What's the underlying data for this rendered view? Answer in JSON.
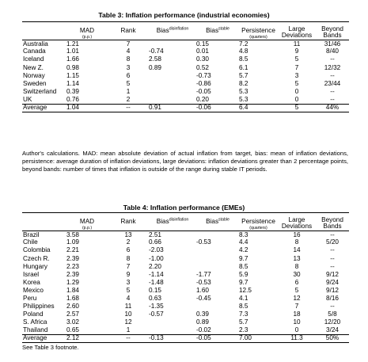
{
  "table3": {
    "title": "Table 3: Inflation performance (industrial economies)",
    "headers": {
      "mad": "MAD",
      "mad_unit": "(p.p.)",
      "rank": "Rank",
      "bias_dis": "Bias",
      "bias_dis_sup": "disinflation",
      "bias_sta": "Bias",
      "bias_sta_sup": "stable",
      "persistence": "Persistence",
      "persistence_unit": "(quarters)",
      "large": "Large",
      "large2": "Deviations",
      "beyond": "Beyond",
      "beyond2": "Bands"
    },
    "rows": [
      [
        "Australia",
        "1.21",
        "7",
        "",
        "0.15",
        "7.2",
        "11",
        "31/46"
      ],
      [
        "Canada",
        "1.01",
        "4",
        "-0.74",
        "0.01",
        "4.8",
        "9",
        "8/40"
      ],
      [
        "Iceland",
        "1.66",
        "8",
        "2.58",
        "0.30",
        "8.5",
        "5",
        "--"
      ],
      [
        "New Z.",
        "0.98",
        "3",
        "0.89",
        "0.52",
        "6.1",
        "7",
        "12/32"
      ],
      [
        "Norway",
        "1.15",
        "6",
        "",
        "-0.73",
        "5.7",
        "3",
        "--"
      ],
      [
        "Sweden",
        "1.14",
        "5",
        "",
        "-0.86",
        "8.2",
        "5",
        "23/44"
      ],
      [
        "Switzerland",
        "0.39",
        "1",
        "",
        "-0.05",
        "5.3",
        "0",
        "--"
      ],
      [
        "UK",
        "0.76",
        "2",
        "",
        "0.20",
        "5.3",
        "0",
        "--"
      ]
    ],
    "average": [
      "Average",
      "1.04",
      "--",
      "0.91",
      "-0.06",
      "6.4",
      "5",
      "44%"
    ]
  },
  "note3": "Author's calculations. MAD: mean absolute deviation of actual inflation from target, bias: mean of inflation deviations, persistence: average duration of inflation deviations, large deviations: inflation deviations greater than 2 percentage points, beyond bands: number of times that inflation is outside of the range during stable IT periods.",
  "table4": {
    "title": "Table 4: Inflation performance (EMEs)",
    "headers": {
      "mad": "MAD",
      "mad_unit": "(p.p.)",
      "rank": "Rank",
      "bias_dis": "Bias",
      "bias_dis_sup": "disinflation",
      "bias_sta": "Bias",
      "bias_sta_sup": "stable",
      "persistence": "Persistence",
      "persistence_unit": "(quarters)",
      "large": "Large",
      "large2": "Deviations",
      "beyond": "Beyond",
      "beyond2": "Bands"
    },
    "rows": [
      [
        "Brazil",
        "3.58",
        "13",
        "2.51",
        "",
        "8.3",
        "16",
        "--"
      ],
      [
        "Chile",
        "1.09",
        "2",
        "0.66",
        "-0.53",
        "4.4",
        "8",
        "5/20"
      ],
      [
        "Colombia",
        "2.21",
        "6",
        "-2.03",
        "",
        "4.2",
        "14",
        "--"
      ],
      [
        "Czech R.",
        "2.39",
        "8",
        "-1.00",
        "",
        "9.7",
        "13",
        "--"
      ],
      [
        "Hungary",
        "2.23",
        "7",
        "2.20",
        "",
        "8.5",
        "8",
        "--"
      ],
      [
        "Israel",
        "2.39",
        "9",
        "-1.14",
        "-1.77",
        "5.9",
        "30",
        "9/12"
      ],
      [
        "Korea",
        "1.29",
        "3",
        "-1.48",
        "-0.53",
        "9.7",
        "6",
        "9/24"
      ],
      [
        "Mexico",
        "1.84",
        "5",
        "0.15",
        "1.60",
        "12.5",
        "5",
        "9/12"
      ],
      [
        "Peru",
        "1.68",
        "4",
        "0.63",
        "-0.45",
        "4.1",
        "12",
        "8/16"
      ],
      [
        "Philippines",
        "2.60",
        "11",
        "-1.35",
        "",
        "8.5",
        "7",
        "--"
      ],
      [
        "Poland",
        "2.57",
        "10",
        "-0.57",
        "0.39",
        "7.3",
        "18",
        "5/8"
      ],
      [
        "S. Africa",
        "3.02",
        "12",
        "",
        "0.89",
        "5.7",
        "10",
        "12/20"
      ],
      [
        "Thailand",
        "0.65",
        "1",
        "",
        "-0.02",
        "2.3",
        "0",
        "3/24"
      ]
    ],
    "average": [
      "Average",
      "2.12",
      "--",
      "-0.13",
      "-0.05",
      "7.00",
      "11.3",
      "50%"
    ]
  },
  "note4": "See Table 3 footnote."
}
